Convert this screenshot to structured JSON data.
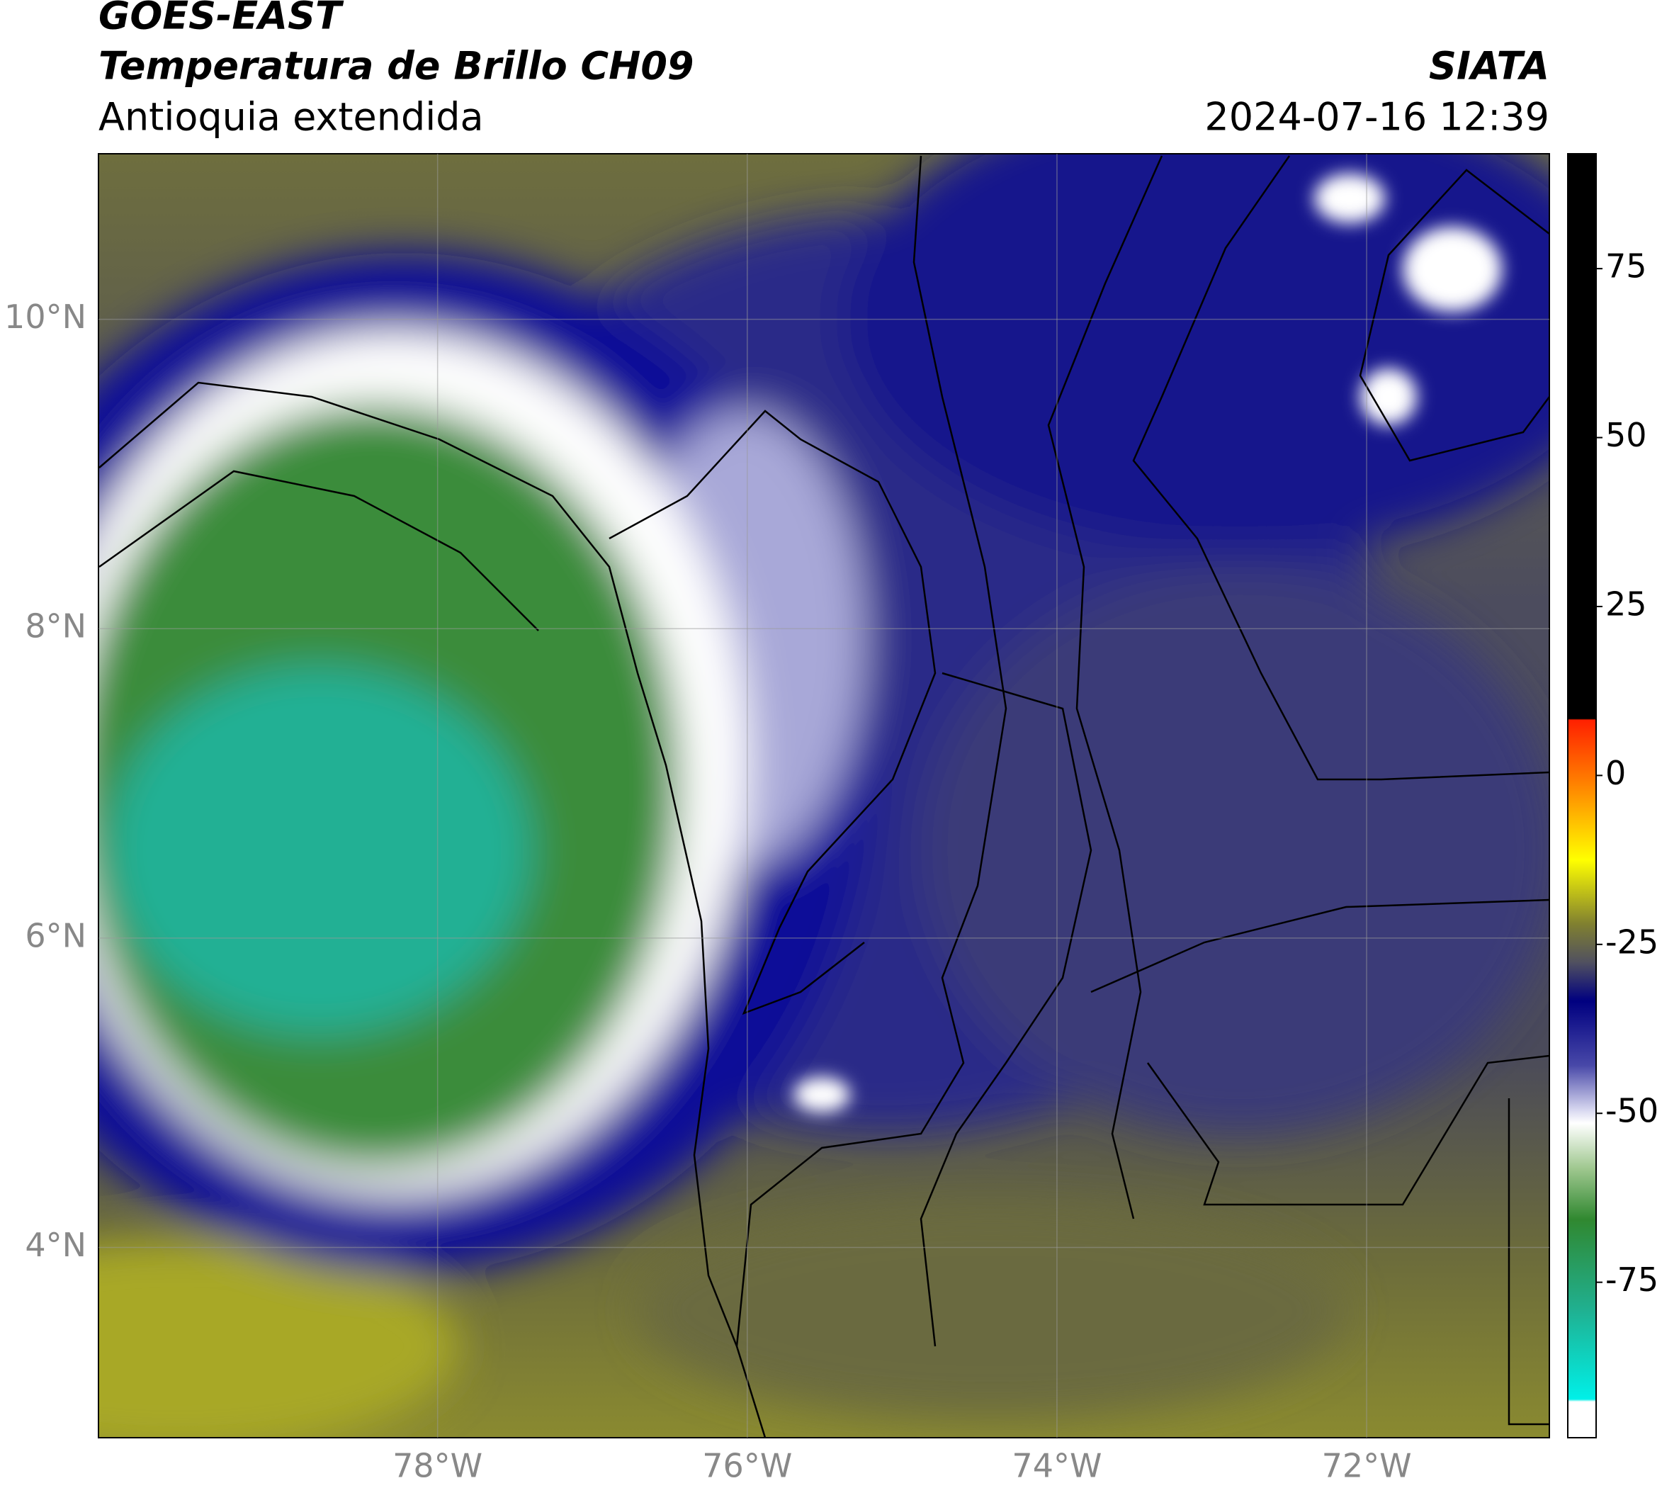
{
  "header": {
    "title": "GOES-EAST",
    "subtitle": "Temperatura de Brillo CH09",
    "region": "Antioquia extendida",
    "source": "SIATA",
    "datetime": "2024-07-16 12:39"
  },
  "map": {
    "xlim": [
      -80.19,
      -70.82
    ],
    "ylim": [
      2.77,
      11.07
    ],
    "xticks": [
      {
        "value": -78,
        "label": "78°W"
      },
      {
        "value": -76,
        "label": "76°W"
      },
      {
        "value": -74,
        "label": "74°W"
      },
      {
        "value": -72,
        "label": "72°W"
      }
    ],
    "yticks": [
      {
        "value": 4,
        "label": "4°N"
      },
      {
        "value": 6,
        "label": "6°N"
      },
      {
        "value": 8,
        "label": "8°N"
      },
      {
        "value": 10,
        "label": "10°N"
      }
    ],
    "grid": true
  },
  "colorbar": {
    "lim": [
      -98,
      92
    ],
    "ticks": [
      -75,
      -50,
      -25,
      0,
      25,
      50,
      75
    ]
  }
}
